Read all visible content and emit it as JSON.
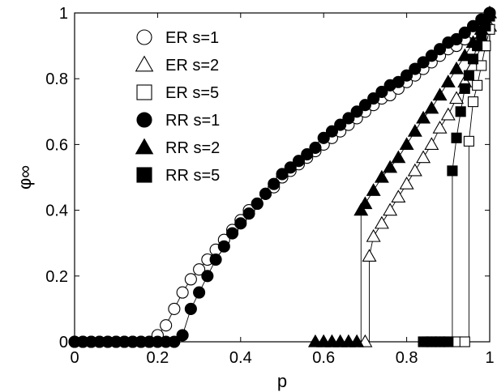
{
  "chart_data": {
    "type": "scatter",
    "xlabel": "p",
    "ylabel": "φ∞",
    "xlim": [
      0,
      1
    ],
    "ylim": [
      0,
      1
    ],
    "x_ticks": [
      "0",
      "0.2",
      "0.4",
      "0.6",
      "0.8",
      "1"
    ],
    "y_ticks": [
      "0",
      "0.2",
      "0.4",
      "0.6",
      "0.8",
      "1"
    ],
    "legend_position": "top-left",
    "grid": false,
    "series": [
      {
        "name": "ER s=1",
        "marker": "circle",
        "fill": "open",
        "x": [
          0.0,
          0.02,
          0.04,
          0.06,
          0.08,
          0.1,
          0.12,
          0.14,
          0.16,
          0.18,
          0.2,
          0.22,
          0.24,
          0.26,
          0.28,
          0.3,
          0.32,
          0.34,
          0.36,
          0.38,
          0.4,
          0.42,
          0.44,
          0.46,
          0.48,
          0.5,
          0.52,
          0.54,
          0.56,
          0.58,
          0.6,
          0.62,
          0.64,
          0.66,
          0.68,
          0.7,
          0.72,
          0.74,
          0.76,
          0.78,
          0.8,
          0.82,
          0.84,
          0.86,
          0.88,
          0.9,
          0.92,
          0.94,
          0.96,
          0.98,
          1.0
        ],
        "y": [
          0,
          0,
          0,
          0,
          0,
          0,
          0,
          0,
          0,
          0,
          0.02,
          0.05,
          0.1,
          0.15,
          0.19,
          0.22,
          0.25,
          0.28,
          0.31,
          0.34,
          0.37,
          0.4,
          0.42,
          0.45,
          0.47,
          0.5,
          0.52,
          0.54,
          0.56,
          0.58,
          0.6,
          0.62,
          0.64,
          0.66,
          0.68,
          0.7,
          0.72,
          0.74,
          0.75,
          0.77,
          0.79,
          0.81,
          0.83,
          0.85,
          0.87,
          0.89,
          0.9,
          0.92,
          0.94,
          0.97,
          1.0
        ]
      },
      {
        "name": "ER s=2",
        "marker": "triangle",
        "fill": "open",
        "x": [
          0.6,
          0.62,
          0.64,
          0.66,
          0.68,
          0.7,
          0.71,
          0.72,
          0.74,
          0.76,
          0.78,
          0.8,
          0.82,
          0.84,
          0.86,
          0.88,
          0.9,
          0.92,
          0.94,
          0.96,
          0.98,
          1.0
        ],
        "y": [
          0,
          0,
          0,
          0,
          0,
          0,
          0.26,
          0.32,
          0.36,
          0.4,
          0.44,
          0.48,
          0.52,
          0.56,
          0.6,
          0.65,
          0.69,
          0.74,
          0.79,
          0.84,
          0.9,
          0.96
        ]
      },
      {
        "name": "ER s=5",
        "marker": "square",
        "fill": "open",
        "x": [
          0.84,
          0.86,
          0.88,
          0.9,
          0.92,
          0.94,
          0.95,
          0.96,
          0.97,
          0.98,
          0.99,
          1.0
        ],
        "y": [
          0,
          0,
          0,
          0,
          0,
          0,
          0.61,
          0.73,
          0.78,
          0.84,
          0.9,
          0.95
        ]
      },
      {
        "name": "RR s=1",
        "marker": "circle",
        "fill": "filled",
        "x": [
          0.0,
          0.02,
          0.04,
          0.06,
          0.08,
          0.1,
          0.12,
          0.14,
          0.16,
          0.18,
          0.2,
          0.22,
          0.24,
          0.26,
          0.28,
          0.3,
          0.32,
          0.34,
          0.36,
          0.38,
          0.4,
          0.42,
          0.44,
          0.46,
          0.48,
          0.5,
          0.52,
          0.54,
          0.56,
          0.58,
          0.6,
          0.62,
          0.64,
          0.66,
          0.68,
          0.7,
          0.72,
          0.74,
          0.76,
          0.78,
          0.8,
          0.82,
          0.84,
          0.86,
          0.88,
          0.9,
          0.92,
          0.94,
          0.96,
          0.98,
          1.0
        ],
        "y": [
          0,
          0,
          0,
          0,
          0,
          0,
          0,
          0,
          0,
          0,
          0,
          0,
          0,
          0.02,
          0.1,
          0.15,
          0.2,
          0.25,
          0.29,
          0.33,
          0.36,
          0.39,
          0.42,
          0.45,
          0.48,
          0.51,
          0.53,
          0.55,
          0.57,
          0.59,
          0.62,
          0.64,
          0.66,
          0.68,
          0.7,
          0.72,
          0.74,
          0.76,
          0.78,
          0.79,
          0.81,
          0.83,
          0.85,
          0.87,
          0.89,
          0.91,
          0.92,
          0.94,
          0.96,
          0.98,
          1.0
        ]
      },
      {
        "name": "RR s=2",
        "marker": "triangle",
        "fill": "filled",
        "x": [
          0.58,
          0.6,
          0.62,
          0.64,
          0.66,
          0.68,
          0.69,
          0.7,
          0.72,
          0.74,
          0.76,
          0.78,
          0.8,
          0.82,
          0.84,
          0.86,
          0.88,
          0.9,
          0.92,
          0.94,
          0.96,
          0.98,
          1.0
        ],
        "y": [
          0,
          0,
          0,
          0,
          0,
          0,
          0.4,
          0.42,
          0.46,
          0.5,
          0.53,
          0.56,
          0.6,
          0.64,
          0.68,
          0.71,
          0.75,
          0.79,
          0.83,
          0.87,
          0.91,
          0.95,
          1.0
        ]
      },
      {
        "name": "RR s=5",
        "marker": "square",
        "fill": "filled",
        "x": [
          0.84,
          0.85,
          0.86,
          0.87,
          0.88,
          0.89,
          0.9,
          0.91,
          0.92,
          0.93,
          0.94,
          0.95,
          0.96,
          0.97,
          0.98,
          0.99,
          1.0
        ],
        "y": [
          0,
          0,
          0,
          0,
          0,
          0,
          0,
          0.52,
          0.62,
          0.7,
          0.77,
          0.81,
          0.86,
          0.9,
          0.93,
          0.96,
          0.99
        ]
      }
    ]
  }
}
